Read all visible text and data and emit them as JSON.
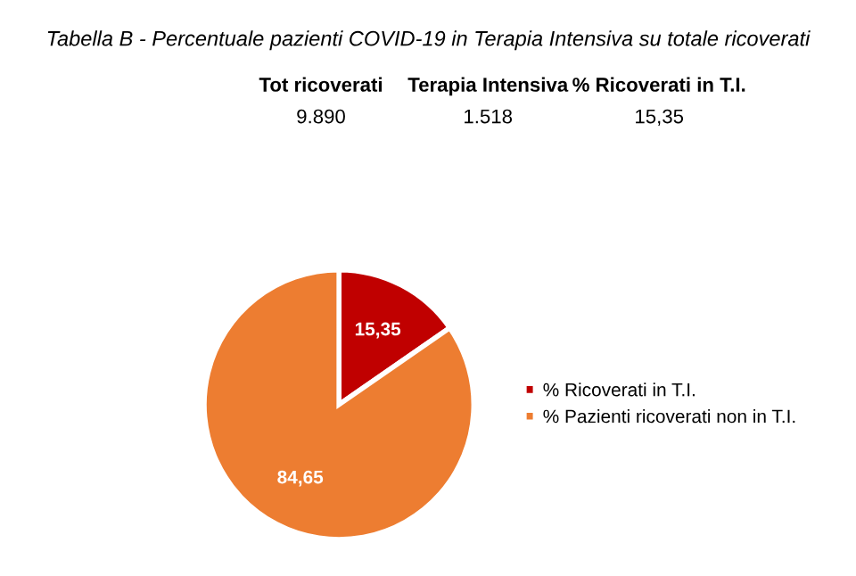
{
  "chart_data": {
    "type": "pie",
    "title": "Tabella B - Percentuale pazienti COVID-19 in Terapia Intensiva su totale ricoverati",
    "annotations": [
      "Tot ricoverati",
      "Terapia Intensiva",
      "% Ricoverati in T.I.",
      "9.890",
      "1.518",
      "15,35"
    ],
    "categories": [
      "% Ricoverati in T.I.",
      "% Pazienti ricoverati non in T.I."
    ],
    "values": [
      15.35,
      84.65
    ],
    "colors": [
      "#c00000",
      "#ed7d31"
    ],
    "value_labels": [
      "15,35",
      "84,65"
    ],
    "legend": "right"
  }
}
